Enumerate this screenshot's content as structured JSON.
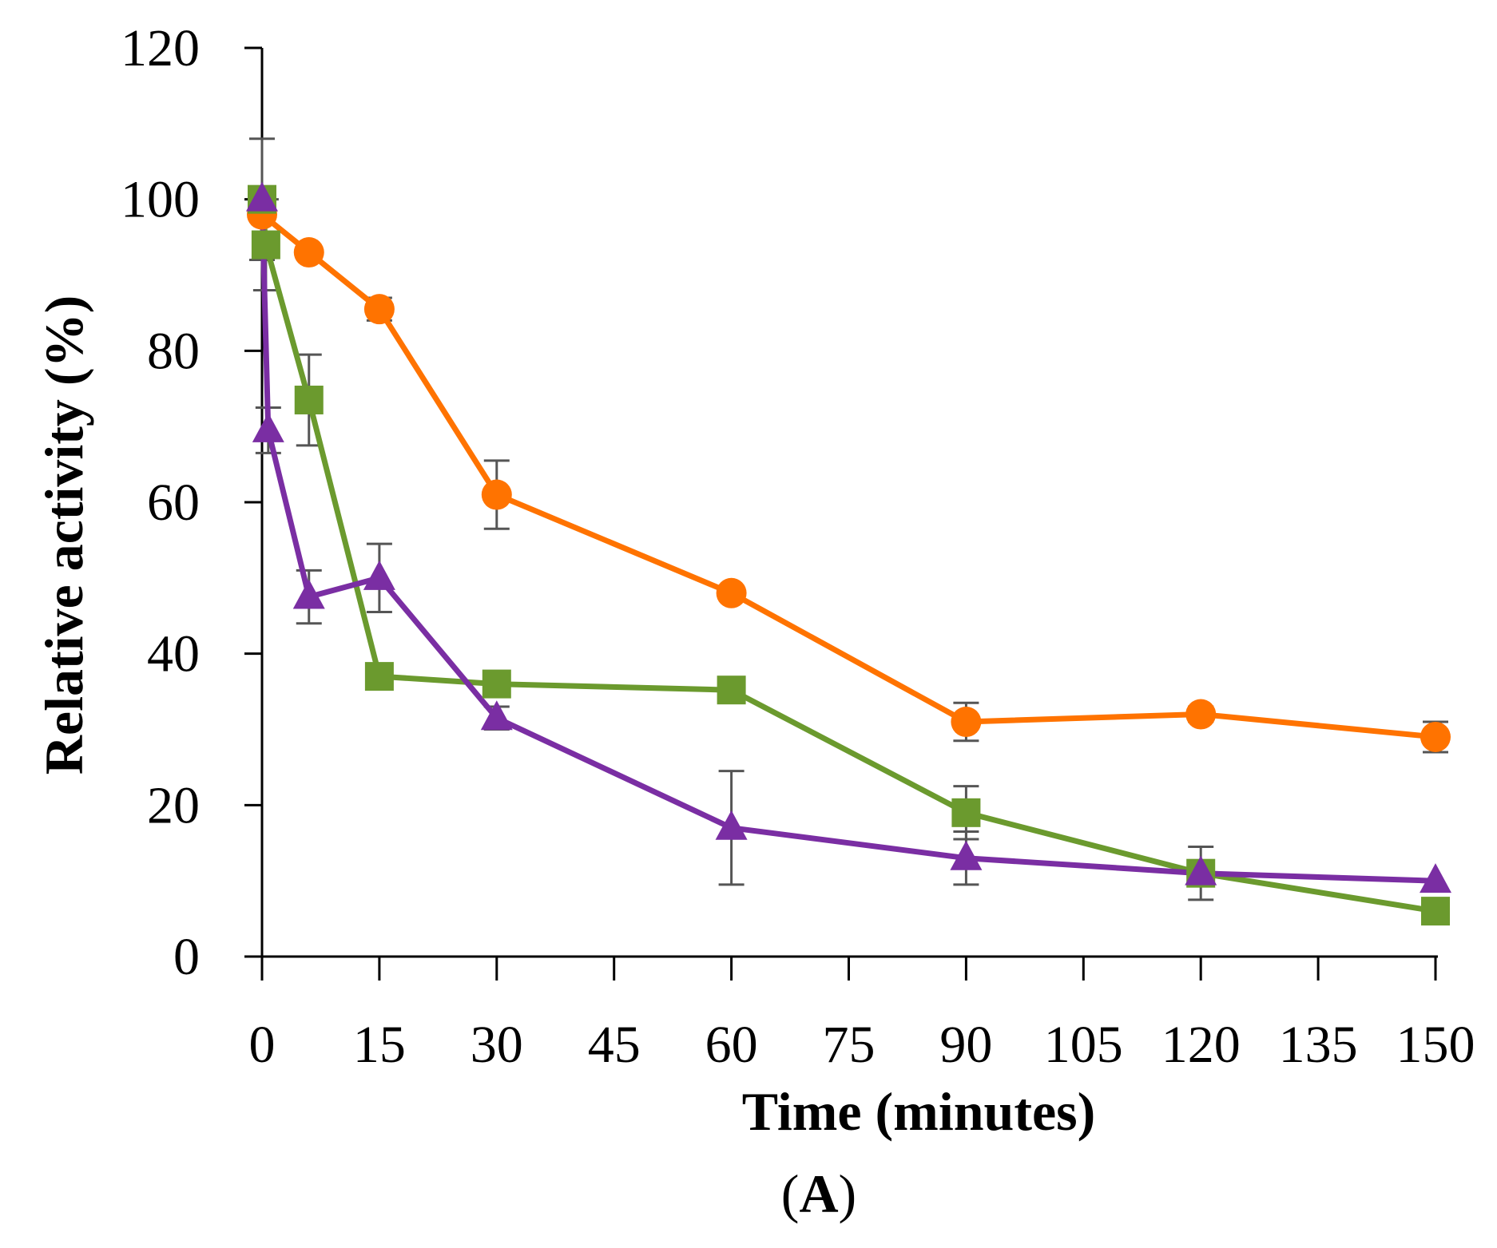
{
  "chart_data": {
    "type": "line",
    "title": "",
    "xlabel": "Time (minutes)",
    "ylabel": "Relative activity (%)",
    "panel_label": "(A)",
    "panel_letter": "A",
    "xlim": [
      0,
      150
    ],
    "ylim": [
      0,
      120
    ],
    "x_ticks": [
      0,
      15,
      30,
      45,
      60,
      75,
      90,
      105,
      120,
      135,
      150
    ],
    "y_ticks": [
      0,
      20,
      40,
      60,
      80,
      100,
      120
    ],
    "x_tick_labels": [
      "0",
      "15",
      "30",
      "45",
      "60",
      "75",
      "90",
      "105",
      "120",
      "135",
      "150"
    ],
    "y_tick_labels": [
      "0",
      "20",
      "40",
      "60",
      "80",
      "100",
      "120"
    ],
    "grid": false,
    "legend": "none",
    "series": [
      {
        "name": "circle series (orange)",
        "color": "#ff7300",
        "marker": "circle",
        "x": [
          0,
          6,
          15,
          30,
          60,
          90,
          120,
          150
        ],
        "values": [
          98,
          93,
          85.5,
          61,
          48,
          31,
          32,
          29
        ],
        "errors": [
          0,
          0,
          1.5,
          4.5,
          0,
          2.5,
          1,
          2
        ]
      },
      {
        "name": "square series (green)",
        "color": "#6b9a2e",
        "marker": "square",
        "x": [
          0,
          0.5,
          6,
          15,
          30,
          60,
          90,
          120,
          150
        ],
        "values": [
          100,
          94,
          73.5,
          37,
          36,
          35.2,
          19,
          11,
          6
        ],
        "errors": [
          0,
          6,
          6,
          0,
          0,
          1.5,
          3.5,
          3.5,
          0
        ]
      },
      {
        "name": "triangle series (purple)",
        "color": "#7a2ea3",
        "marker": "triangle",
        "x": [
          0,
          0.8,
          6,
          15,
          30,
          60,
          90,
          120,
          150
        ],
        "values": [
          100,
          69.5,
          47.5,
          50,
          31.5,
          17,
          13,
          11,
          10
        ],
        "errors": [
          8,
          3,
          3.5,
          4.5,
          1.5,
          7.5,
          3.5,
          0,
          0
        ]
      }
    ]
  }
}
